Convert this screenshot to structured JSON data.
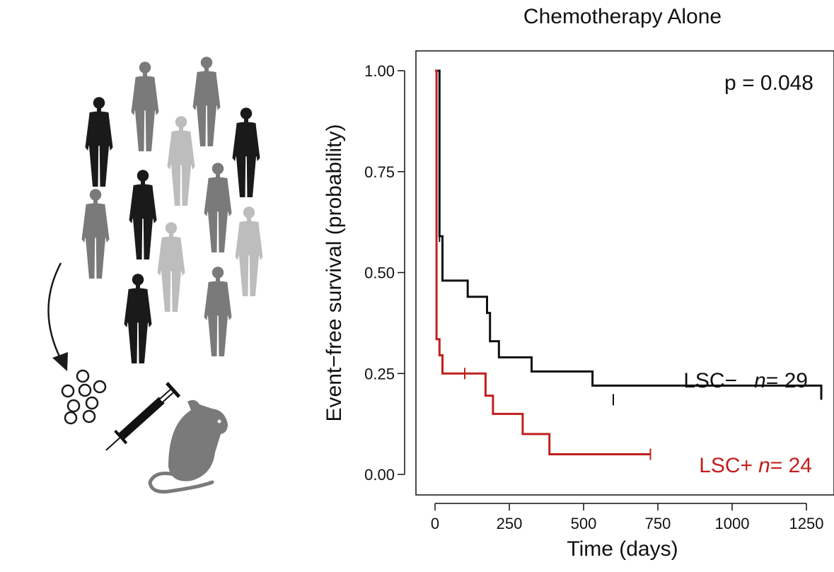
{
  "chart_data": {
    "type": "line",
    "subtype": "kaplan-meier step curve",
    "title": "Chemotherapy Alone",
    "xlabel": "Time (days)",
    "ylabel": "Event−free survival (probability)",
    "xlim": [
      -50,
      1300
    ],
    "ylim": [
      -0.05,
      1.05
    ],
    "x_ticks": [
      0,
      250,
      500,
      750,
      1000,
      1250
    ],
    "y_ticks": [
      0.0,
      0.25,
      0.5,
      0.75,
      1.0
    ],
    "x_tick_labels": [
      "0",
      "250",
      "500",
      "750",
      "1000",
      "1250"
    ],
    "y_tick_labels": [
      "0.00",
      "0.25",
      "0.50",
      "0.75",
      "1.00"
    ],
    "grid": false,
    "annotations": [
      {
        "text": "p = 0.048",
        "placement": "top-right"
      }
    ],
    "series": [
      {
        "name": "LSC−",
        "n_label": "n",
        "n_value": "= 29",
        "color": "#111111",
        "x": [
          0,
          15,
          25,
          110,
          175,
          185,
          215,
          325,
          530,
          1300
        ],
        "y": [
          1.0,
          0.59,
          0.48,
          0.44,
          0.4,
          0.33,
          0.29,
          0.255,
          0.22,
          0.185
        ],
        "censor_x": [
          15,
          600
        ],
        "censor_y": [
          0.59,
          0.185
        ]
      },
      {
        "name": "LSC+",
        "n_label": "n",
        "n_value": "= 24",
        "color": "#c0201e",
        "x": [
          0,
          5,
          15,
          25,
          170,
          195,
          295,
          385,
          725
        ],
        "y": [
          1.0,
          0.335,
          0.295,
          0.25,
          0.195,
          0.15,
          0.1,
          0.05,
          0.05
        ],
        "censor_x": [
          100,
          725
        ],
        "censor_y": [
          0.25,
          0.05
        ]
      }
    ]
  },
  "illustration": {
    "figure_colors": [
      "#1a1a1a",
      "#7a7a7a",
      "#bdbdbd"
    ],
    "arrow_color": "#1a1a1a",
    "mouse_color": "#7a7a7a",
    "icons": [
      "patient-silhouettes",
      "arrow",
      "cells",
      "syringe",
      "mouse"
    ]
  }
}
